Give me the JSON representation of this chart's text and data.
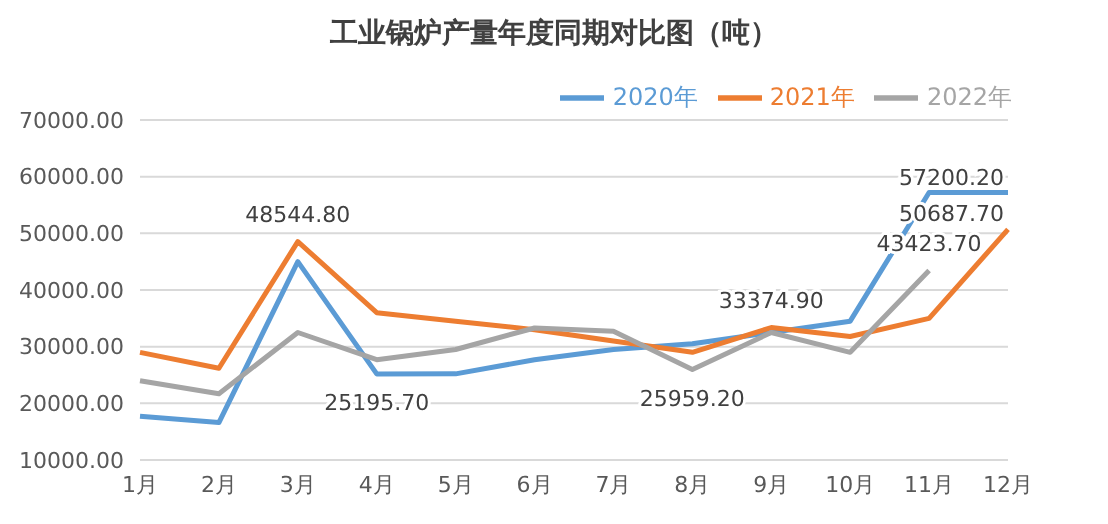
{
  "chart_data": {
    "type": "line",
    "title": "工业锅炉产量年度同期对比图（吨）",
    "categories": [
      "1月",
      "2月",
      "3月",
      "4月",
      "5月",
      "6月",
      "7月",
      "8月",
      "9月",
      "10月",
      "11月",
      "12月"
    ],
    "series": [
      {
        "name": "2020年",
        "color": "#5b9bd5",
        "values": [
          17700,
          16600,
          45000,
          25195.7,
          25200,
          27700,
          29500,
          30500,
          32500,
          34500,
          57200,
          57200.2
        ],
        "value_labels": [
          null,
          null,
          null,
          "25195.70",
          null,
          null,
          null,
          null,
          null,
          null,
          null,
          "57200.20"
        ]
      },
      {
        "name": "2021年",
        "color": "#ed7d31",
        "values": [
          29000,
          26200,
          48544.8,
          36000,
          34500,
          33000,
          31000,
          29000,
          33374.9,
          31800,
          35000,
          50687.7
        ],
        "value_labels": [
          null,
          null,
          "48544.80",
          null,
          null,
          null,
          null,
          null,
          "33374.90",
          null,
          null,
          "50687.70"
        ]
      },
      {
        "name": "2022年",
        "color": "#a5a5a5",
        "values": [
          24000,
          21700,
          32500,
          27700,
          29500,
          33300,
          32700,
          25959.2,
          32500,
          29000,
          43423.7,
          null
        ],
        "value_labels": [
          null,
          null,
          null,
          null,
          null,
          null,
          null,
          "25959.20",
          null,
          null,
          "43423.70",
          null
        ]
      }
    ],
    "ylim": [
      10000,
      70000
    ],
    "yticks": [
      {
        "value": 10000,
        "label": "10000.00"
      },
      {
        "value": 20000,
        "label": "20000.00"
      },
      {
        "value": 30000,
        "label": "30000.00"
      },
      {
        "value": 40000,
        "label": "40000.00"
      },
      {
        "value": 50000,
        "label": "50000.00"
      },
      {
        "value": 60000,
        "label": "60000.00"
      },
      {
        "value": 70000,
        "label": "70000.00"
      }
    ],
    "grid": "y",
    "legend": "top right",
    "marker": "none",
    "line_style": "solid"
  }
}
